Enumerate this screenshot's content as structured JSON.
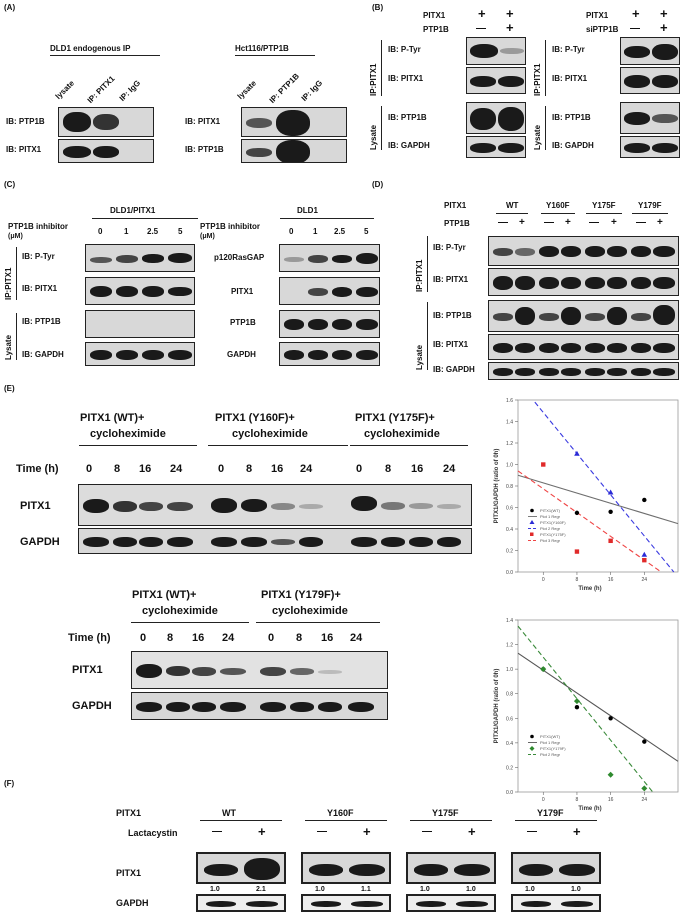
{
  "panel_labels": {
    "A": "(A)",
    "B": "(B)",
    "C": "(C)",
    "D": "(D)",
    "E": "(E)",
    "F": "(F)"
  },
  "A": {
    "left_title": "DLD1 endogenous IP",
    "right_title": "Hct116/PTP1B",
    "left_lanes": [
      "lysate",
      "IP: PITX1",
      "IP: IgG"
    ],
    "right_lanes": [
      "lysate",
      "IP: PTP1B",
      "IP: IgG"
    ],
    "left_rows": [
      "IB: PTP1B",
      "IB: PITX1"
    ],
    "right_rows": [
      "IB: PITX1",
      "IB: PTP1B"
    ]
  },
  "B": {
    "left_header": [
      "PITX1",
      "PTP1B"
    ],
    "left_signs": [
      [
        "+",
        "+"
      ],
      [
        "—",
        "+"
      ]
    ],
    "right_header": [
      "PITX1",
      "siPTP1B"
    ],
    "right_signs": [
      [
        "+",
        "+"
      ],
      [
        "—",
        "+"
      ]
    ],
    "ip_label": "IP:PITX1",
    "lysate_label": "Lysate",
    "rows": [
      "IB: P-Tyr",
      "IB: PITX1",
      "IB: PTP1B",
      "IB: GAPDH"
    ]
  },
  "C": {
    "left_title": "DLD1/PITX1",
    "right_title": "DLD1",
    "inhibitor": "PTP1B inhibitor",
    "unit": "(μM)",
    "doses": [
      "0",
      "1",
      "2.5",
      "5"
    ],
    "ip_label": "IP:PITX1",
    "lysate_label": "Lysate",
    "left_rows": [
      "IB: P-Tyr",
      "IB: PITX1",
      "IB: PTP1B",
      "IB: GAPDH"
    ],
    "right_rows": [
      "p120RasGAP",
      "PITX1",
      "PTP1B",
      "GAPDH"
    ]
  },
  "D": {
    "pitx1": "PITX1",
    "ptp1b": "PTP1B",
    "mutants": [
      "WT",
      "Y160F",
      "Y175F",
      "Y179F"
    ],
    "signs": [
      "—",
      "+",
      "—",
      "+",
      "—",
      "+",
      "—",
      "+"
    ],
    "ip_label": "IP:PITX1",
    "lysate_label": "Lysate",
    "rows": [
      "IB: P-Tyr",
      "IB: PITX1",
      "IB: PTP1B",
      "IB: PITX1",
      "IB: GAPDH"
    ]
  },
  "E": {
    "top_groups": [
      "PITX1 (WT)+",
      "PITX1 (Y160F)+",
      "PITX1 (Y175F)+"
    ],
    "bottom_groups": [
      "PITX1 (WT)+",
      "PITX1 (Y179F)+"
    ],
    "cyclo": "cycloheximide",
    "time_label": "Time (h)",
    "times": [
      "0",
      "8",
      "16",
      "24"
    ],
    "rows": [
      "PITX1",
      "GAPDH"
    ]
  },
  "F": {
    "pitx1": "PITX1",
    "lactacystin": "Lactacystin",
    "mutants": [
      "WT",
      "Y160F",
      "Y175F",
      "Y179F"
    ],
    "signs": [
      "—",
      "+"
    ],
    "rows": [
      "PITX1",
      "GAPDH"
    ],
    "quant": [
      [
        "1.0",
        "2.1"
      ],
      [
        "1.0",
        "1.1"
      ],
      [
        "1.0",
        "1.0"
      ],
      [
        "1.0",
        "1.0"
      ]
    ]
  },
  "chart_data": [
    {
      "type": "scatter",
      "ylabel": "PITX1/GAPDH (ratio of 0h)",
      "xlabel": "Time (h)",
      "xticks": [
        "0",
        "8",
        "16",
        "24"
      ],
      "yticks": [
        "0.0",
        "0.2",
        "0.4",
        "0.6",
        "0.8",
        "1.0",
        "1.2",
        "1.4",
        "1.6"
      ],
      "xlim": [
        -6,
        32
      ],
      "ylim": [
        0,
        1.6
      ],
      "series": [
        {
          "name": "PITX1(WT)",
          "color": "#000000",
          "marker": "circle",
          "x": [
            8,
            16,
            24
          ],
          "y": [
            0.55,
            0.56,
            0.67
          ]
        },
        {
          "name": "Plot 1 Regr",
          "color": "#6e6e6e",
          "x": [
            -6,
            32
          ],
          "y": [
            0.9,
            0.45
          ]
        },
        {
          "name": "PITX1(Y160F)",
          "color": "#2b2bd6",
          "marker": "triangle",
          "x": [
            8,
            16,
            24
          ],
          "y": [
            1.1,
            0.74,
            0.16
          ]
        },
        {
          "name": "Plot 2 Regr",
          "color": "#3a3ae0",
          "x": [
            -2,
            31
          ],
          "y": [
            1.58,
            0.0
          ]
        },
        {
          "name": "PITX1(Y175F)",
          "color": "#e02a2a",
          "marker": "square",
          "x": [
            0,
            8,
            16,
            24
          ],
          "y": [
            1.0,
            0.19,
            0.29,
            0.11
          ]
        },
        {
          "name": "Plot 3 Regr",
          "color": "#ef4444",
          "x": [
            -6,
            28
          ],
          "y": [
            0.94,
            0.0
          ]
        }
      ]
    },
    {
      "type": "scatter",
      "ylabel": "PITX1/GAPDH (ratio of 0h)",
      "xlabel": "Time (h)",
      "xticks": [
        "0",
        "8",
        "16",
        "24"
      ],
      "yticks": [
        "0.0",
        "0.2",
        "0.4",
        "0.6",
        "0.8",
        "1.0",
        "1.2",
        "1.4"
      ],
      "xlim": [
        -6,
        32
      ],
      "ylim": [
        0,
        1.4
      ],
      "series": [
        {
          "name": "PITX1(WT)",
          "color": "#000000",
          "marker": "circle",
          "x": [
            0,
            8,
            16,
            24
          ],
          "y": [
            1.0,
            0.69,
            0.6,
            0.41
          ]
        },
        {
          "name": "Plot 1 Regr",
          "color": "#555555",
          "x": [
            -6,
            32
          ],
          "y": [
            1.13,
            0.25
          ]
        },
        {
          "name": "PITX1(Y179F)",
          "color": "#2f8a2f",
          "marker": "diamond",
          "x": [
            0,
            8,
            16,
            24
          ],
          "y": [
            1.0,
            0.74,
            0.14,
            0.03
          ]
        },
        {
          "name": "Plot 2 Regr",
          "color": "#3a8a3a",
          "x": [
            -6,
            26
          ],
          "y": [
            1.35,
            0.0
          ]
        }
      ]
    }
  ]
}
